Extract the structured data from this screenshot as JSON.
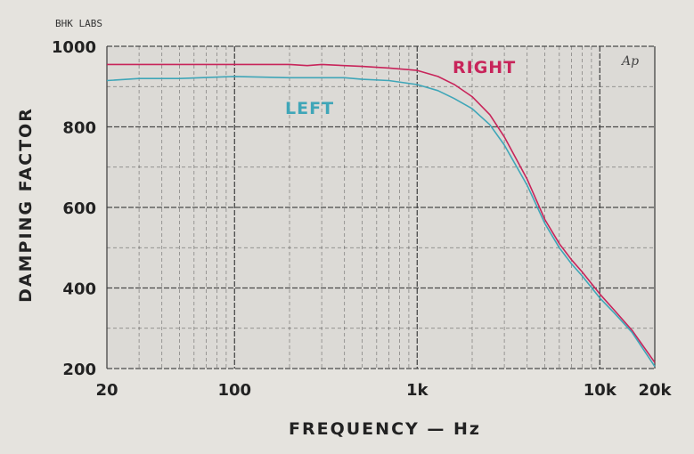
{
  "credit": "BHK LABS",
  "logo_text": "Ap",
  "colors": {
    "background": "#e5e3de",
    "plot_bg": "#dcdad6",
    "grid": "#3a3a3a",
    "right": "#c8245a",
    "left": "#3fa6b8"
  },
  "chart_data": {
    "type": "line",
    "xlabel": "FREQUENCY — Hz",
    "ylabel": "DAMPING FACTOR",
    "xscale": "log",
    "xlim": [
      20,
      20000
    ],
    "ylim": [
      200,
      1000
    ],
    "xticks": [
      {
        "value": 20,
        "label": "20"
      },
      {
        "value": 100,
        "label": "100"
      },
      {
        "value": 1000,
        "label": "1k"
      },
      {
        "value": 10000,
        "label": "10k"
      },
      {
        "value": 20000,
        "label": "20k"
      }
    ],
    "yticks": [
      {
        "value": 200,
        "label": "200"
      },
      {
        "value": 400,
        "label": "400"
      },
      {
        "value": 600,
        "label": "600"
      },
      {
        "value": 800,
        "label": "800"
      },
      {
        "value": 1000,
        "label": "1000"
      }
    ],
    "grid": true,
    "series": [
      {
        "name": "RIGHT",
        "color": "#c8245a",
        "x": [
          20,
          50,
          100,
          200,
          250,
          300,
          400,
          500,
          700,
          1000,
          1300,
          1600,
          2000,
          2500,
          3000,
          4000,
          5000,
          6000,
          7000,
          8000,
          10000,
          12000,
          15000,
          20000
        ],
        "y": [
          955,
          955,
          955,
          955,
          952,
          955,
          952,
          950,
          946,
          940,
          925,
          905,
          875,
          830,
          775,
          670,
          570,
          510,
          470,
          440,
          385,
          345,
          295,
          215
        ]
      },
      {
        "name": "LEFT",
        "color": "#3fa6b8",
        "x": [
          20,
          30,
          50,
          100,
          200,
          300,
          400,
          500,
          700,
          1000,
          1300,
          1600,
          2000,
          2500,
          3000,
          4000,
          5000,
          6000,
          7000,
          8000,
          10000,
          12000,
          15000,
          20000
        ],
        "y": [
          915,
          920,
          920,
          925,
          922,
          922,
          922,
          918,
          915,
          905,
          890,
          870,
          845,
          805,
          755,
          655,
          560,
          500,
          460,
          430,
          375,
          338,
          290,
          205
        ]
      }
    ]
  }
}
